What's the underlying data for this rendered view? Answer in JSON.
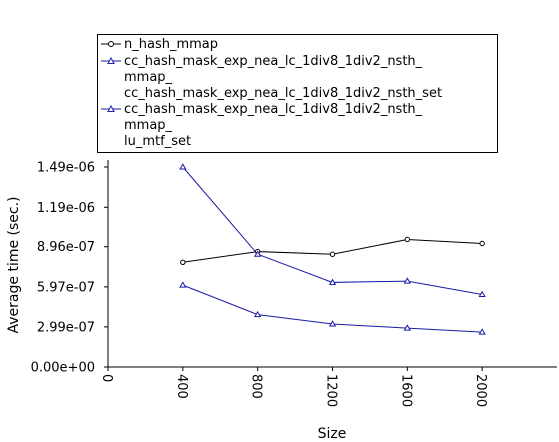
{
  "chart_data": {
    "type": "line",
    "title": "",
    "xlabel": "Size",
    "ylabel": "Average time (sec.)",
    "xlim": [
      0,
      2400
    ],
    "ylim": [
      0,
      1.49e-06
    ],
    "xticks": [
      "0",
      "400",
      "800",
      "1200",
      "1600",
      "2000"
    ],
    "xtick_values": [
      0,
      400,
      800,
      1200,
      1600,
      2000
    ],
    "yticks": [
      "0.00e+00",
      "2.99e-07",
      "5.97e-07",
      "8.96e-07",
      "1.19e-06",
      "1.49e-06"
    ],
    "ytick_values": [
      0,
      2.99e-07,
      5.97e-07,
      8.96e-07,
      1.19e-06,
      1.49e-06
    ],
    "grid": false,
    "legend_position": "top",
    "series": [
      {
        "name_lines": [
          "n_hash_mmap"
        ],
        "color": "#000000",
        "marker": "circle",
        "x": [
          400,
          800,
          1200,
          1600,
          2000
        ],
        "y": [
          7.8e-07,
          8.6e-07,
          8.4e-07,
          9.5e-07,
          9.2e-07
        ]
      },
      {
        "name_lines": [
          "cc_hash_mask_exp_nea_lc_1div8_1div2_nsth_",
          "mmap_",
          "cc_hash_mask_exp_nea_lc_1div8_1div2_nsth_set"
        ],
        "color": "#1a1aa6",
        "marker": "triangle",
        "x": [
          400,
          800,
          1200,
          1600,
          2000
        ],
        "y": [
          1.49e-06,
          8.4e-07,
          6.3e-07,
          6.4e-07,
          5.4e-07
        ]
      },
      {
        "name_lines": [
          "cc_hash_mask_exp_nea_lc_1div8_1div2_nsth_",
          "mmap_",
          "lu_mtf_set"
        ],
        "color": "#1a1aa6",
        "marker": "triangle",
        "x": [
          400,
          800,
          1200,
          1600,
          2000
        ],
        "y": [
          6.1e-07,
          3.9e-07,
          3.2e-07,
          2.9e-07,
          2.6e-07
        ]
      }
    ]
  }
}
